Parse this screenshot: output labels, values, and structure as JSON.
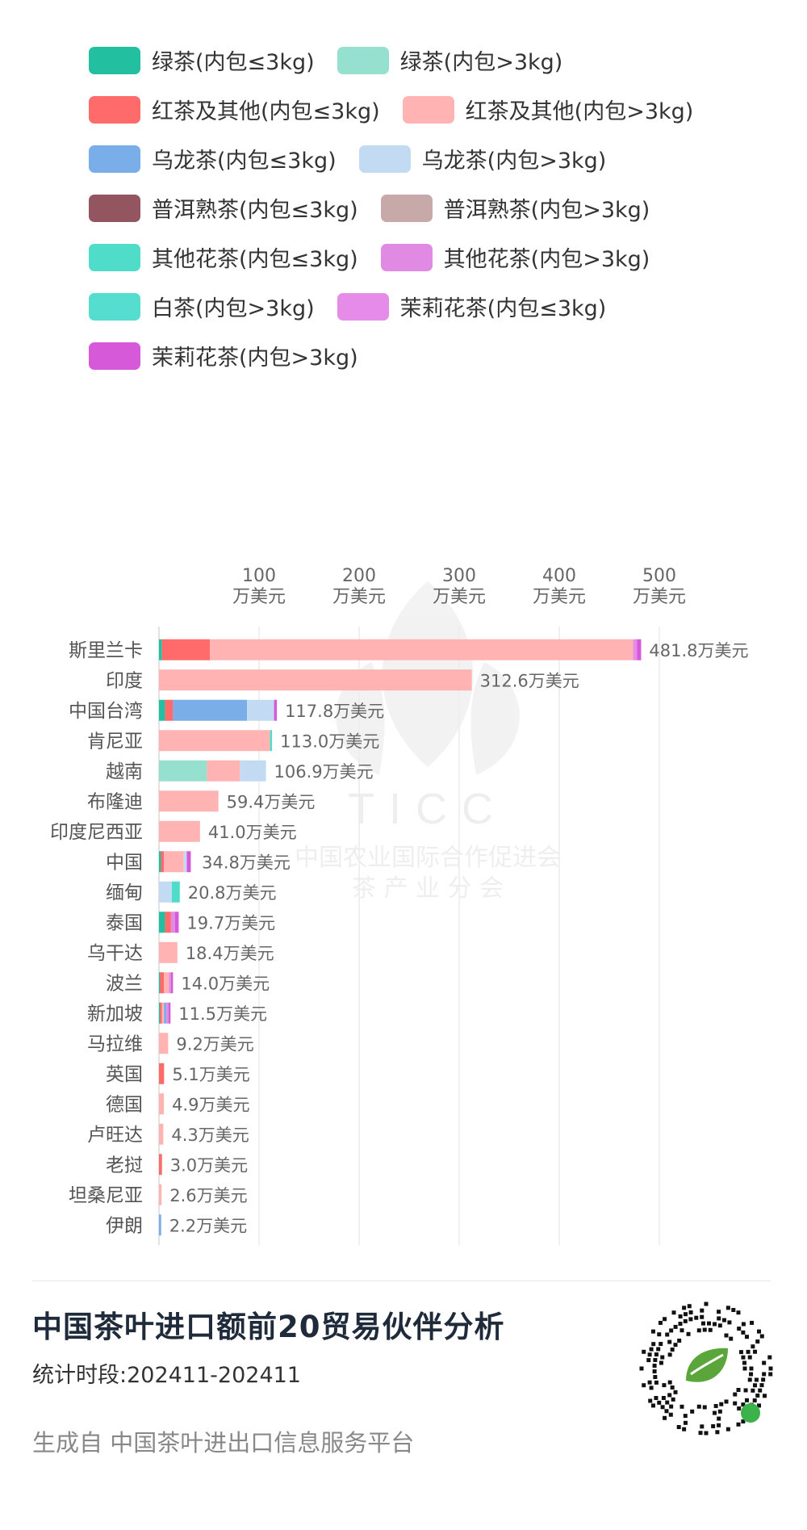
{
  "legend": [
    [
      {
        "label": "绿茶(内包≤3kg)",
        "color": "#22c0a0"
      },
      {
        "label": "绿茶(内包>3kg)",
        "color": "#96e0cf"
      }
    ],
    [
      {
        "label": "红茶及其他(内包≤3kg)",
        "color": "#ff6b6b"
      },
      {
        "label": "红茶及其他(内包>3kg)",
        "color": "#ffb3b3"
      }
    ],
    [
      {
        "label": "乌龙茶(内包≤3kg)",
        "color": "#7aaee8"
      },
      {
        "label": "乌龙茶(内包>3kg)",
        "color": "#c3daf3"
      }
    ],
    [
      {
        "label": "普洱熟茶(内包≤3kg)",
        "color": "#935661"
      },
      {
        "label": "普洱熟茶(内包>3kg)",
        "color": "#c8a9aa"
      }
    ],
    [
      {
        "label": "其他花茶(内包≤3kg)",
        "color": "#4fdcc8"
      },
      {
        "label": "其他花茶(内包>3kg)",
        "color": "#e18ae4"
      }
    ],
    [
      {
        "label": "白茶(内包>3kg)",
        "color": "#55ddd0"
      },
      {
        "label": "茉莉花茶(内包≤3kg)",
        "color": "#e58be8"
      }
    ],
    [
      {
        "label": "茉莉花茶(内包>3kg)",
        "color": "#d659d9"
      }
    ]
  ],
  "chart_data": {
    "type": "bar",
    "orientation": "horizontal",
    "stacked": true,
    "xlim": [
      0,
      520
    ],
    "x_ticks": [
      {
        "value": 100,
        "label": "100",
        "unit": "万美元"
      },
      {
        "value": 200,
        "label": "200",
        "unit": "万美元"
      },
      {
        "value": 300,
        "label": "300",
        "unit": "万美元"
      },
      {
        "value": 400,
        "label": "400",
        "unit": "万美元"
      },
      {
        "value": 500,
        "label": "500",
        "unit": "万美元"
      }
    ],
    "grid": true,
    "legend_position": "top",
    "categories": [
      "斯里兰卡",
      "印度",
      "中国台湾",
      "肯尼亚",
      "越南",
      "布隆迪",
      "印度尼西亚",
      "中国",
      "缅甸",
      "泰国",
      "乌干达",
      "波兰",
      "新加坡",
      "马拉维",
      "英国",
      "德国",
      "卢旺达",
      "老挝",
      "坦桑尼亚",
      "伊朗"
    ],
    "totals": [
      481.8,
      312.6,
      117.8,
      113.0,
      106.9,
      59.4,
      41.0,
      34.8,
      20.8,
      19.7,
      18.4,
      14.0,
      11.5,
      9.2,
      5.1,
      4.9,
      4.3,
      3.0,
      2.6,
      2.2
    ],
    "total_labels": [
      "481.8万美元",
      "312.6万美元",
      "117.8万美元",
      "113.0万美元",
      "106.9万美元",
      "59.4万美元",
      "41.0万美元",
      "34.8万美元",
      "20.8万美元",
      "19.7万美元",
      "18.4万美元",
      "14.0万美元",
      "11.5万美元",
      "9.2万美元",
      "5.1万美元",
      "4.9万美元",
      "4.3万美元",
      "3.0万美元",
      "2.6万美元",
      "2.2万美元"
    ],
    "series": [
      {
        "name": "绿茶(内包≤3kg)",
        "color": "#22c0a0",
        "values": [
          3,
          0,
          6,
          0,
          0,
          0,
          0,
          2,
          0,
          6,
          0,
          1,
          1,
          0,
          0,
          0,
          0,
          0,
          0,
          0
        ]
      },
      {
        "name": "绿茶(内包>3kg)",
        "color": "#96e0cf",
        "values": [
          0,
          0,
          0,
          0,
          47.9,
          0,
          0,
          0,
          0,
          0,
          0,
          0,
          0,
          0,
          0,
          0,
          0,
          0,
          0,
          0
        ]
      },
      {
        "name": "红茶及其他(内包≤3kg)",
        "color": "#ff6b6b",
        "values": [
          48,
          0,
          8,
          0,
          0,
          0,
          0,
          3,
          0,
          6,
          0,
          4,
          2,
          0,
          5.1,
          0,
          0,
          3.0,
          0,
          0
        ]
      },
      {
        "name": "红茶及其他(内包>3kg)",
        "color": "#ffb3b3",
        "values": [
          422.8,
          312.6,
          0,
          111.0,
          33,
          59.4,
          41.0,
          19.8,
          0,
          0,
          18.4,
          5,
          2,
          9.2,
          0,
          4.9,
          4.3,
          0,
          2.6,
          0
        ]
      },
      {
        "name": "乌龙茶(内包≤3kg)",
        "color": "#7aaee8",
        "values": [
          0,
          0,
          74,
          0,
          0,
          0,
          0,
          0,
          0,
          0,
          0,
          0,
          2.5,
          0,
          0,
          0,
          0,
          0,
          0,
          2.2
        ]
      },
      {
        "name": "乌龙茶(内包>3kg)",
        "color": "#c3daf3",
        "values": [
          0,
          0,
          27,
          0,
          26,
          0,
          0,
          3,
          12.8,
          0,
          0,
          0,
          0,
          0,
          0,
          0,
          0,
          0,
          0,
          0
        ]
      },
      {
        "name": "普洱熟茶(内包≤3kg)",
        "color": "#935661",
        "values": [
          0,
          0,
          0,
          0,
          0,
          0,
          0,
          0,
          0,
          0,
          0,
          0,
          0,
          0,
          0,
          0,
          0,
          0,
          0,
          0
        ]
      },
      {
        "name": "普洱熟茶(内包>3kg)",
        "color": "#c8a9aa",
        "values": [
          0,
          0,
          0,
          0,
          0,
          0,
          0,
          0,
          0,
          0,
          0,
          0,
          0,
          0,
          0,
          0,
          0,
          0,
          0,
          0
        ]
      },
      {
        "name": "其他花茶(内包≤3kg)",
        "color": "#4fdcc8",
        "values": [
          0,
          0,
          0,
          2,
          0,
          0,
          0,
          0,
          8,
          0,
          0,
          0,
          0,
          0,
          0,
          0,
          0,
          0,
          0,
          0
        ]
      },
      {
        "name": "其他花茶(内包>3kg)",
        "color": "#e18ae4",
        "values": [
          0,
          0,
          0,
          0,
          0,
          0,
          0,
          0,
          0,
          4,
          0,
          2,
          2,
          0,
          0,
          0,
          0,
          0,
          0,
          0
        ]
      },
      {
        "name": "白茶(内包>3kg)",
        "color": "#55ddd0",
        "values": [
          0,
          0,
          0,
          0,
          0,
          0,
          0,
          0,
          0,
          0,
          0,
          0,
          0,
          0,
          0,
          0,
          0,
          0,
          0,
          0
        ]
      },
      {
        "name": "茉莉花茶(内包≤3kg)",
        "color": "#e58be8",
        "values": [
          4,
          0,
          0,
          0,
          0,
          0,
          0,
          0,
          0,
          0,
          0,
          0,
          0,
          0,
          0,
          0,
          0,
          0,
          0,
          0
        ]
      },
      {
        "name": "茉莉花茶(内包>3kg)",
        "color": "#d659d9",
        "values": [
          4,
          0,
          2.8,
          0,
          0,
          0,
          0,
          4,
          0,
          3.7,
          0,
          2,
          2,
          0,
          0,
          0,
          0,
          0,
          0,
          0
        ]
      }
    ]
  },
  "watermark": {
    "text": "TICC",
    "line1": "中国农业国际合作促进会",
    "line2": "茶 产 业 分 会"
  },
  "footer": {
    "title": "中国茶叶进口额前20贸易伙伴分析",
    "period": "统计时段:202411-202411",
    "source": "生成自 中国茶叶进出口信息服务平台"
  }
}
